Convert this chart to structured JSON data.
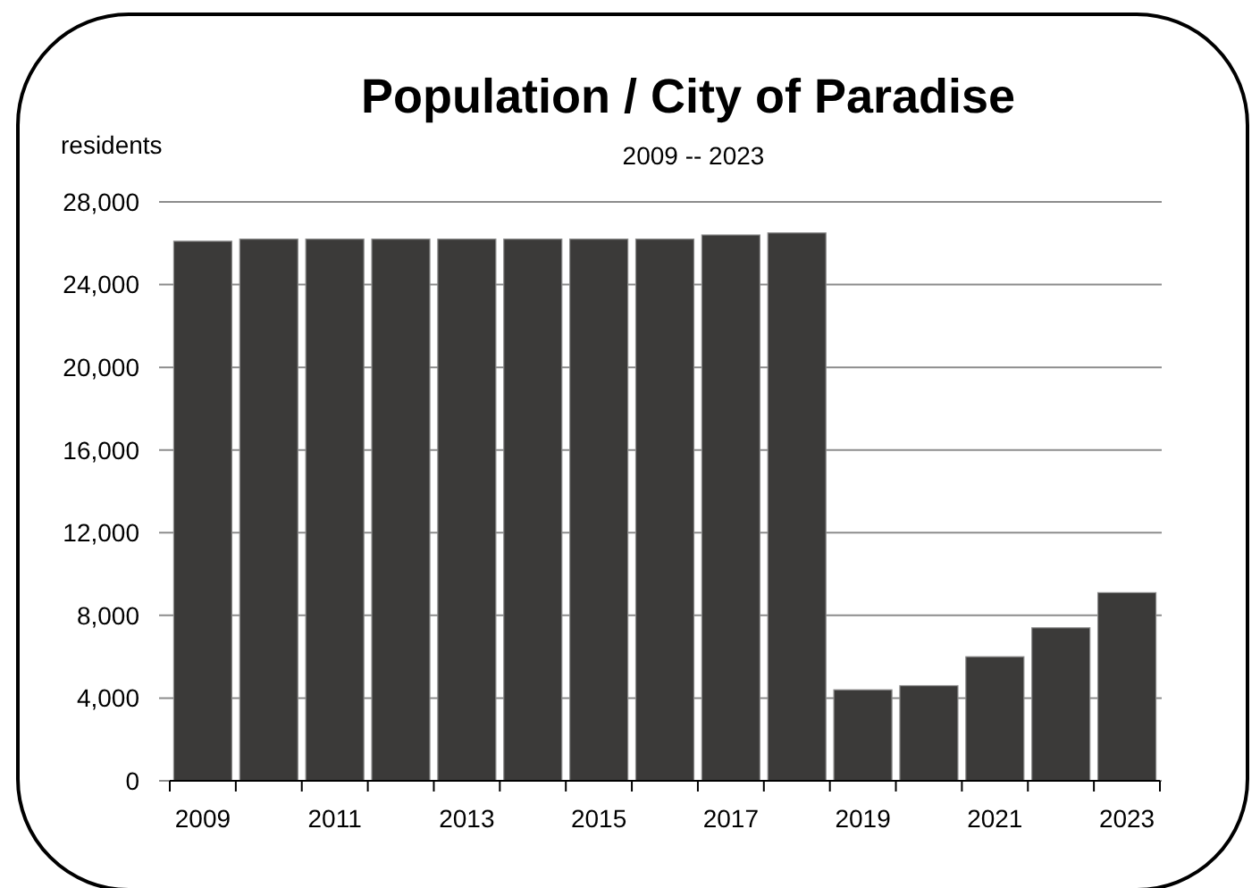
{
  "chart_data": {
    "type": "bar",
    "title": "Population / City of Paradise",
    "subtitle": "2009 -- 2023",
    "ylabel": "residents",
    "categories": [
      "2009",
      null,
      "2011",
      null,
      "2013",
      null,
      "2015",
      null,
      "2017",
      null,
      "2019",
      null,
      "2021",
      null,
      "2023"
    ],
    "values": [
      26100,
      26200,
      26200,
      26200,
      26200,
      26200,
      26200,
      26200,
      26400,
      26500,
      4400,
      4600,
      6000,
      7400,
      9100
    ],
    "color": "#3b3a39",
    "ylim": [
      0,
      28000
    ],
    "yticks": [
      0,
      {
        "value": 4000,
        "label": "4,000"
      },
      {
        "value": 8000,
        "label": "8,000"
      },
      {
        "value": 12000,
        "label": "12,000"
      },
      {
        "value": 16000,
        "label": "16,000"
      },
      {
        "value": 20000,
        "label": "20,000"
      },
      {
        "value": 24000,
        "label": "24,000"
      },
      {
        "value": 28000,
        "label": "28,000"
      }
    ],
    "grid": "y"
  }
}
